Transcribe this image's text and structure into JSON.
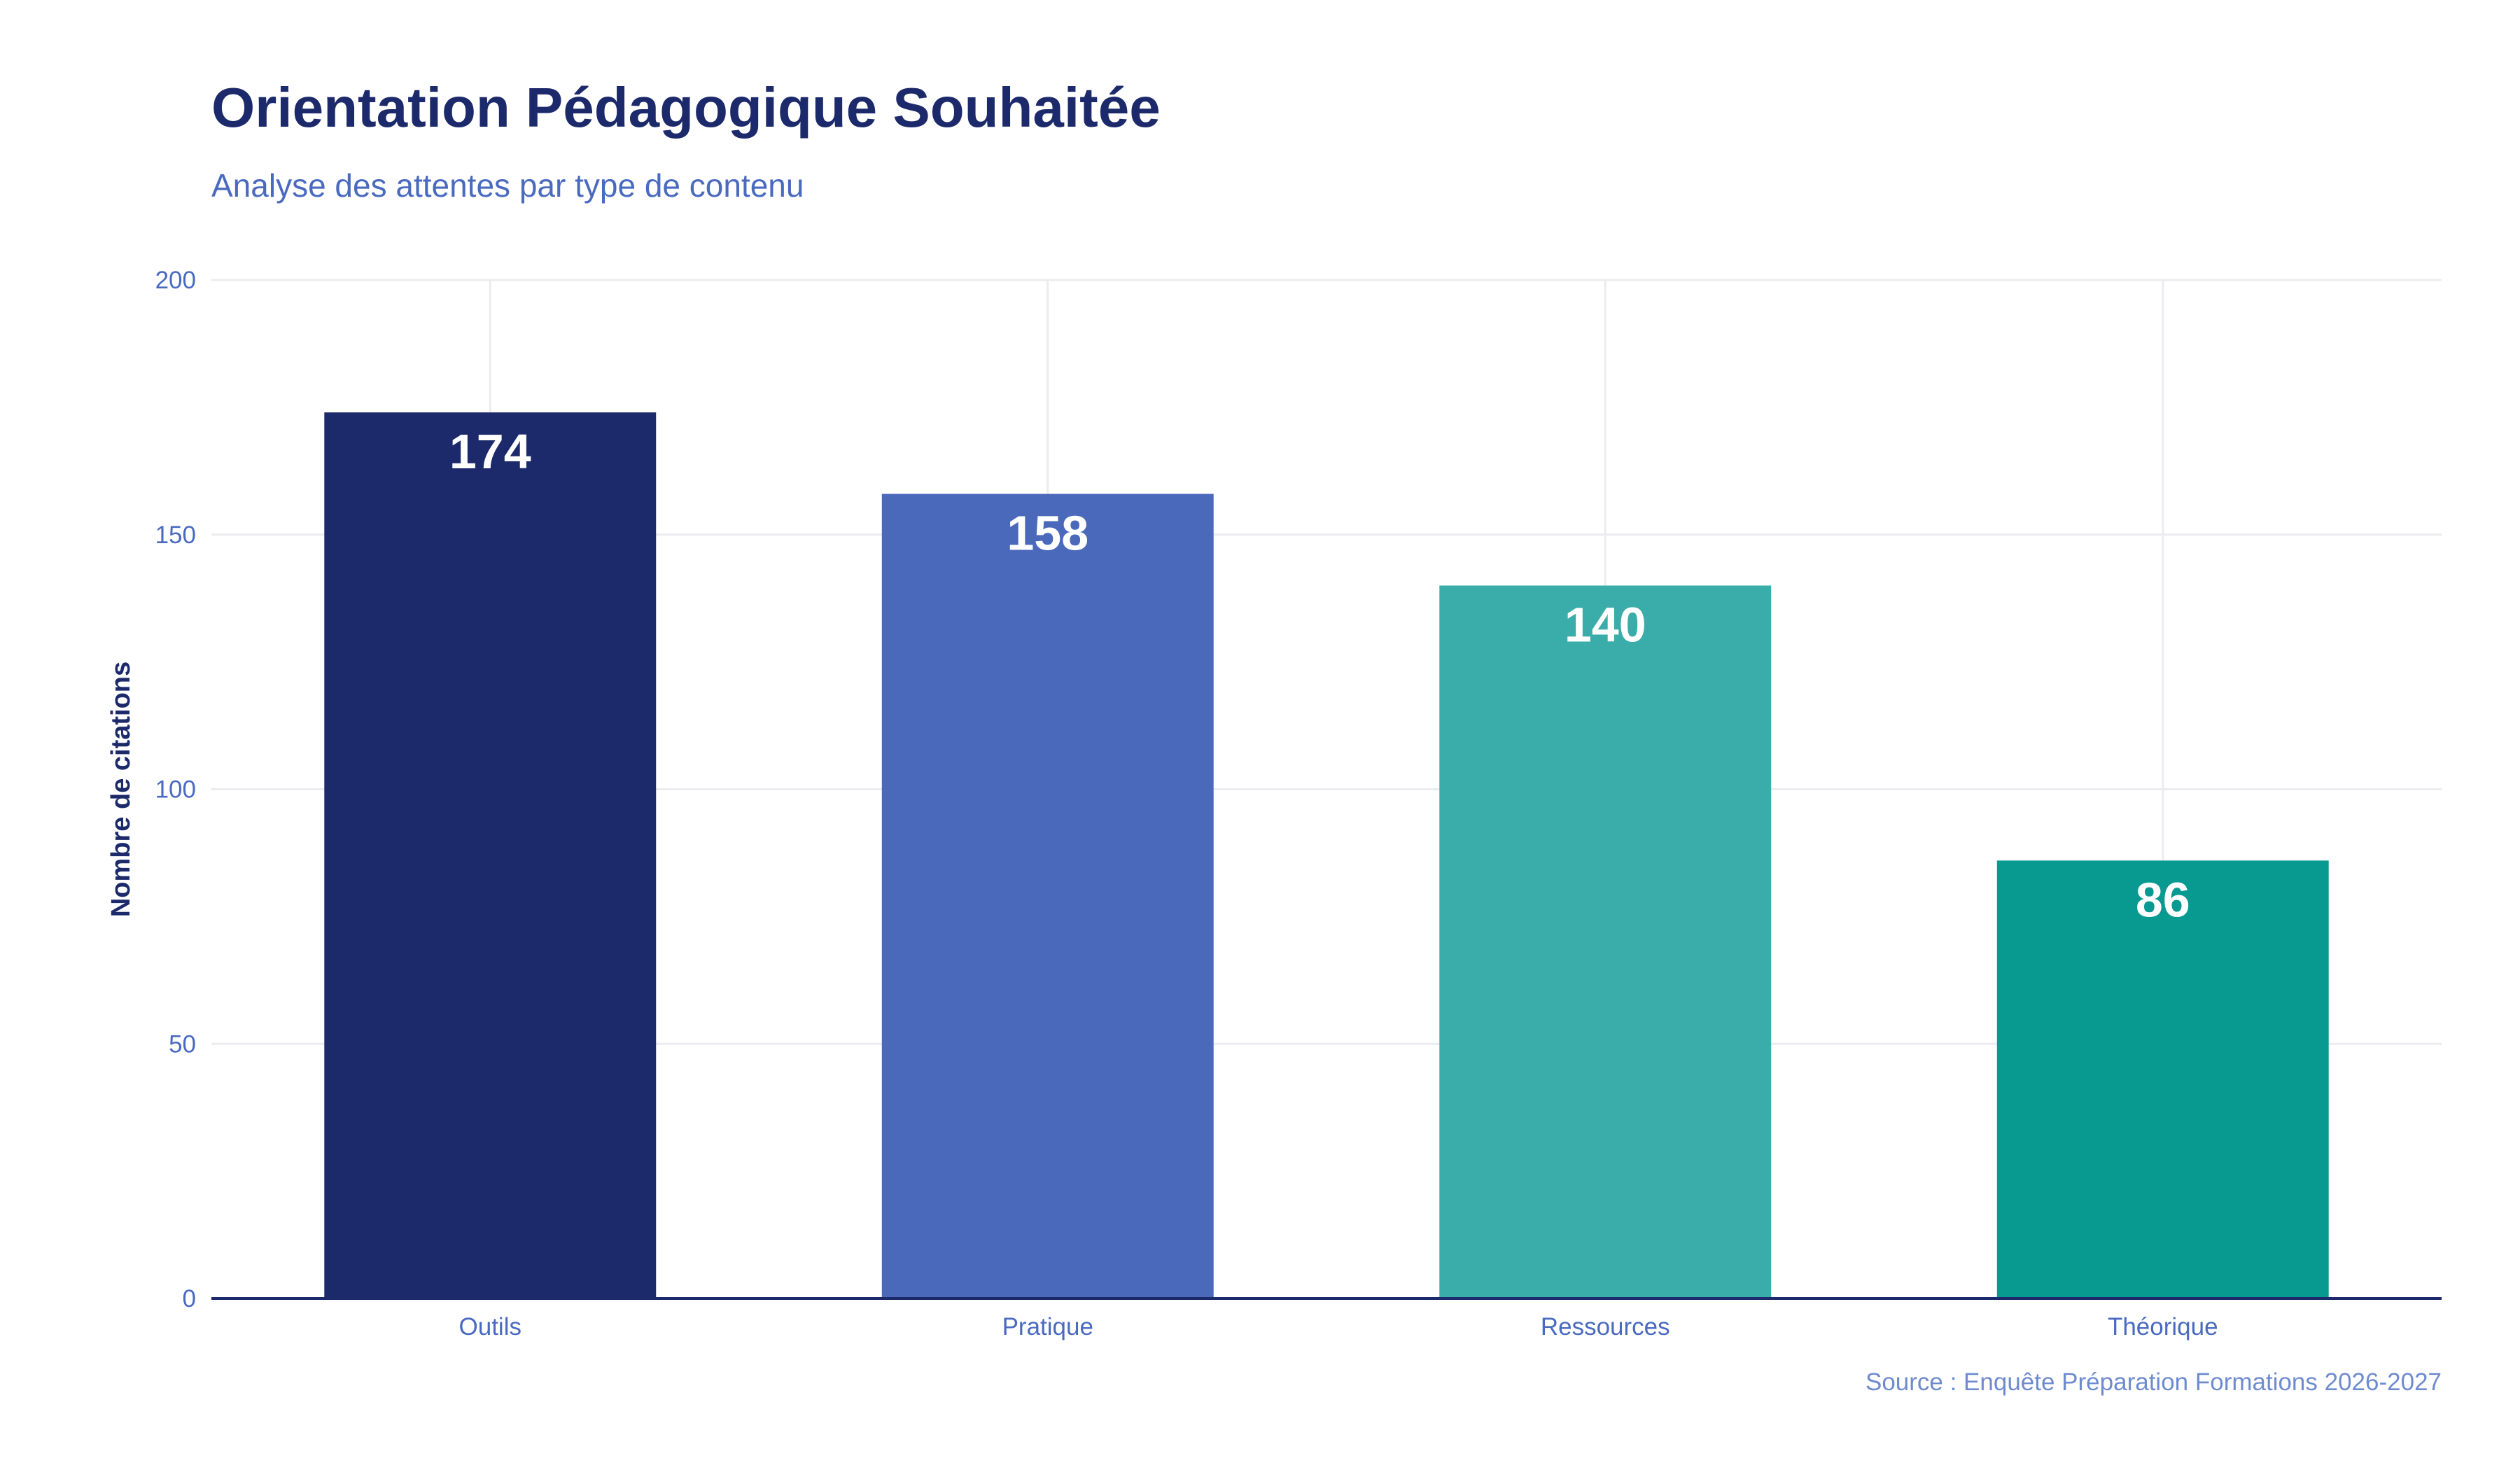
{
  "chart_data": {
    "type": "bar",
    "title": "Orientation Pédagogique Souhaitée",
    "subtitle": "Analyse des attentes par type de contenu",
    "xlabel": "",
    "ylabel": "Nombre de citations",
    "categories": [
      "Outils",
      "Pratique",
      "Ressources",
      "Théorique"
    ],
    "values": [
      174,
      158,
      140,
      86
    ],
    "colors": [
      "#1c2a6b",
      "#4a69bb",
      "#3aaca9",
      "#089a91"
    ],
    "ylim": [
      0,
      200
    ],
    "yticks": [
      0,
      50,
      100,
      150,
      200
    ],
    "grid": true,
    "legend": "none",
    "source": "Source : Enquête Préparation Formations 2026-2027"
  }
}
